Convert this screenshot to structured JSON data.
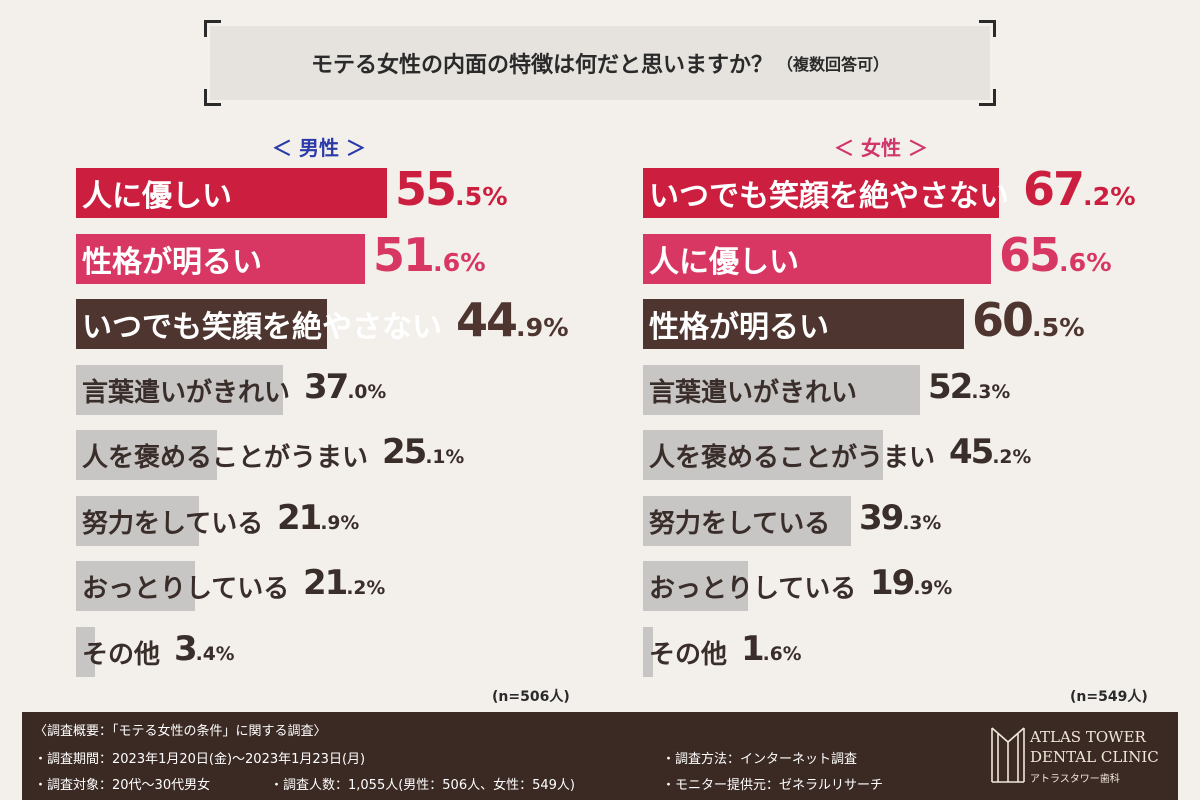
{
  "title": {
    "main": "モテる女性の内面の特徴は何だと思いますか？",
    "suffix": "（複数回答可）"
  },
  "chart_data": [
    {
      "type": "bar",
      "orientation": "horizontal",
      "title": "＜ 男性 ＞",
      "categories": [
        "人に優しい",
        "性格が明るい",
        "いつでも笑顔を絶やさない",
        "言葉遣いがきれい",
        "人を褒めることがうまい",
        "努力をしている",
        "おっとりしている",
        "その他"
      ],
      "values": [
        55.5,
        51.6,
        44.9,
        37.0,
        25.1,
        21.9,
        21.2,
        3.4
      ],
      "value_labels": [
        "55.5%",
        "51.6%",
        "44.9%",
        "37.0%",
        "25.1%",
        "21.9%",
        "21.2%",
        "3.4%"
      ],
      "sample_size": "(n=506人)",
      "highlight_colors": [
        "#cc1f3f",
        "#d73762",
        "#4e352f"
      ],
      "other_color": "#c8c6c5"
    },
    {
      "type": "bar",
      "orientation": "horizontal",
      "title": "＜ 女性 ＞",
      "categories": [
        "いつでも笑顔を絶やさない",
        "人に優しい",
        "性格が明るい",
        "言葉遣いがきれい",
        "人を褒めることがうまい",
        "努力をしている",
        "おっとりしている",
        "その他"
      ],
      "values": [
        67.2,
        65.6,
        60.5,
        52.3,
        45.2,
        39.3,
        19.9,
        1.6
      ],
      "value_labels": [
        "67.2%",
        "65.6%",
        "60.5%",
        "52.3%",
        "45.2%",
        "39.3%",
        "19.9%",
        "1.6%"
      ],
      "sample_size": "(n=549人)",
      "highlight_colors": [
        "#cc1f3f",
        "#d73762",
        "#4e352f"
      ],
      "other_color": "#c8c6c5"
    }
  ],
  "footer": {
    "heading": "〈調査概要：「モテる女性の条件」に関する調査〉",
    "period": "・調査期間：2023年1月20日(金)〜2023年1月23日(月)",
    "target": "・調査対象：20代〜30代男女",
    "count": "・調査人数：1,055人(男性：506人、女性：549人)",
    "method": "・調査方法：インターネット調査",
    "provider": "・モニター提供元：ゼネラルリサーチ"
  },
  "logo": {
    "line1": "ATLAS TOWER",
    "line2": "DENTAL CLINIC",
    "line3": "アトラスタワー歯科"
  }
}
